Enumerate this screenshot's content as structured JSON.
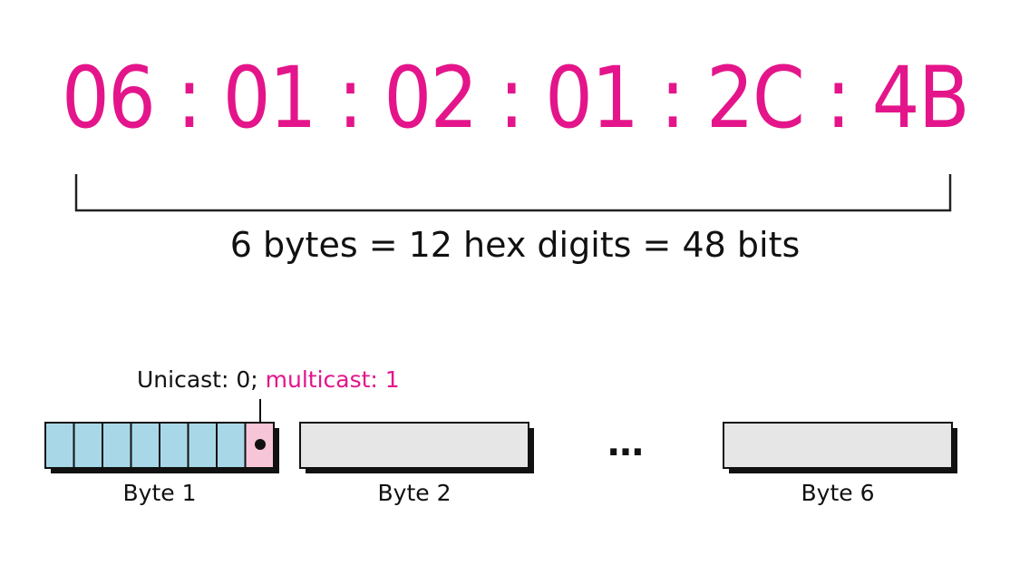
{
  "mac_address": {
    "text": "06 : 01 : 02 : 01 : 2C : 4B",
    "color": "#e4158b"
  },
  "caption": "6 bytes = 12 hex digits = 48 bits",
  "bit_note": {
    "unicast": "Unicast: 0; ",
    "multicast": "multicast: 1",
    "multicast_color": "#e4158b"
  },
  "bytes": {
    "byte1_label": "Byte 1",
    "byte2_label": "Byte 2",
    "byte6_label": "Byte 6",
    "ellipsis": "…",
    "bit_fill_color": "#a8d8e8",
    "lsb_fill_color": "#f7c5d8",
    "box_fill_color": "#e6e6e6"
  }
}
